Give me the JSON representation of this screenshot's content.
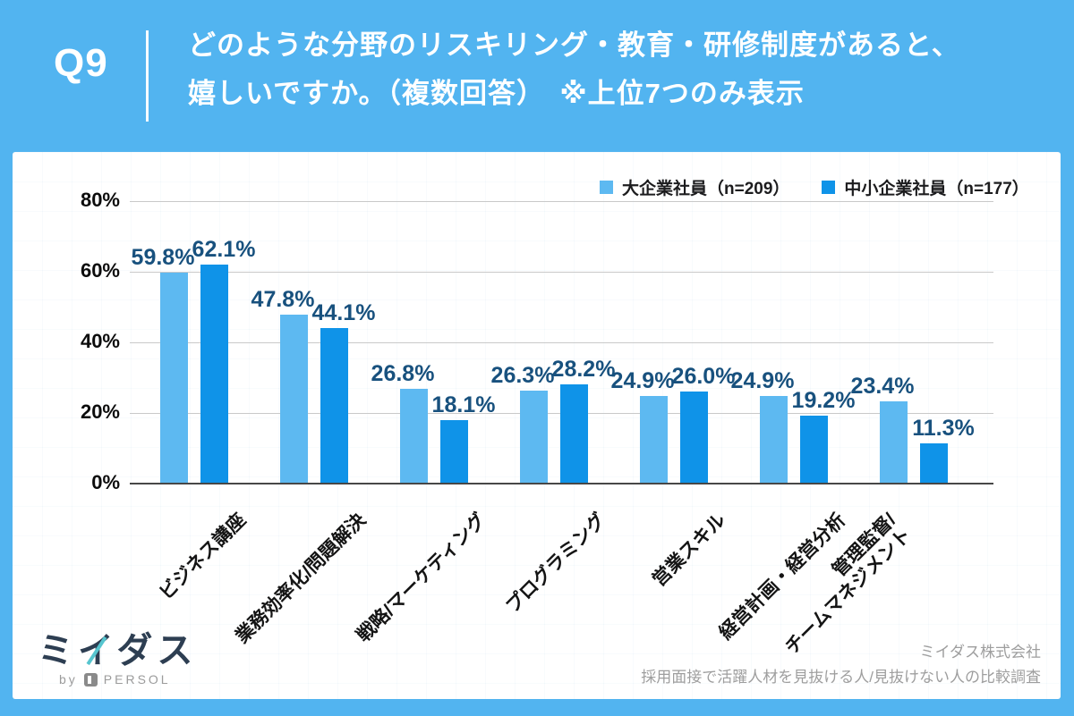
{
  "header": {
    "question_number": "Q9",
    "title_line1": "どのような分野のリスキリング・教育・研修制度があると、",
    "title_line2": "嬉しいですか。（複数回答）　※上位7つのみ表示"
  },
  "chart_data": {
    "type": "bar",
    "title": "どのような分野のリスキリング・教育・研修制度があると、嬉しいですか。（複数回答） ※上位7つのみ表示",
    "categories": [
      "ビジネス講座",
      "業務効率化/問題解決",
      "戦略/マーケティング",
      "プログラミング",
      "営業スキル",
      "経営計画・経営分析",
      "管理監督/\nチームマネジメント"
    ],
    "series": [
      {
        "name": "大企業社員（n=209）",
        "color": "#5db9f1",
        "values": [
          59.8,
          47.8,
          26.8,
          26.3,
          24.9,
          24.9,
          23.4
        ]
      },
      {
        "name": "中小企業社員（n=177）",
        "color": "#0f93e8",
        "values": [
          62.1,
          44.1,
          18.1,
          28.2,
          26.0,
          19.2,
          11.3
        ]
      }
    ],
    "xlabel": "",
    "ylabel": "",
    "yticks": [
      0,
      20,
      40,
      60,
      80
    ],
    "ytick_labels": [
      "0%",
      "20%",
      "40%",
      "60%",
      "80%"
    ],
    "ylim": [
      0,
      86
    ],
    "value_suffix": "%",
    "grid": true,
    "legend_position": "top-right",
    "value_label_color": "#18517e"
  },
  "footer": {
    "logo_text": "ミイダス",
    "logo_sub_by": "by",
    "logo_sub_brand": "PERSOL",
    "company": "ミイダス株式会社",
    "survey": "採用面接で活躍人材を見抜ける人/見抜けない人の比較調査"
  },
  "colors": {
    "background": "#52b4f0",
    "card": "#ffffff",
    "header_text": "#ffffff",
    "gridline": "#c9c9c9",
    "axis_line": "#474747"
  }
}
